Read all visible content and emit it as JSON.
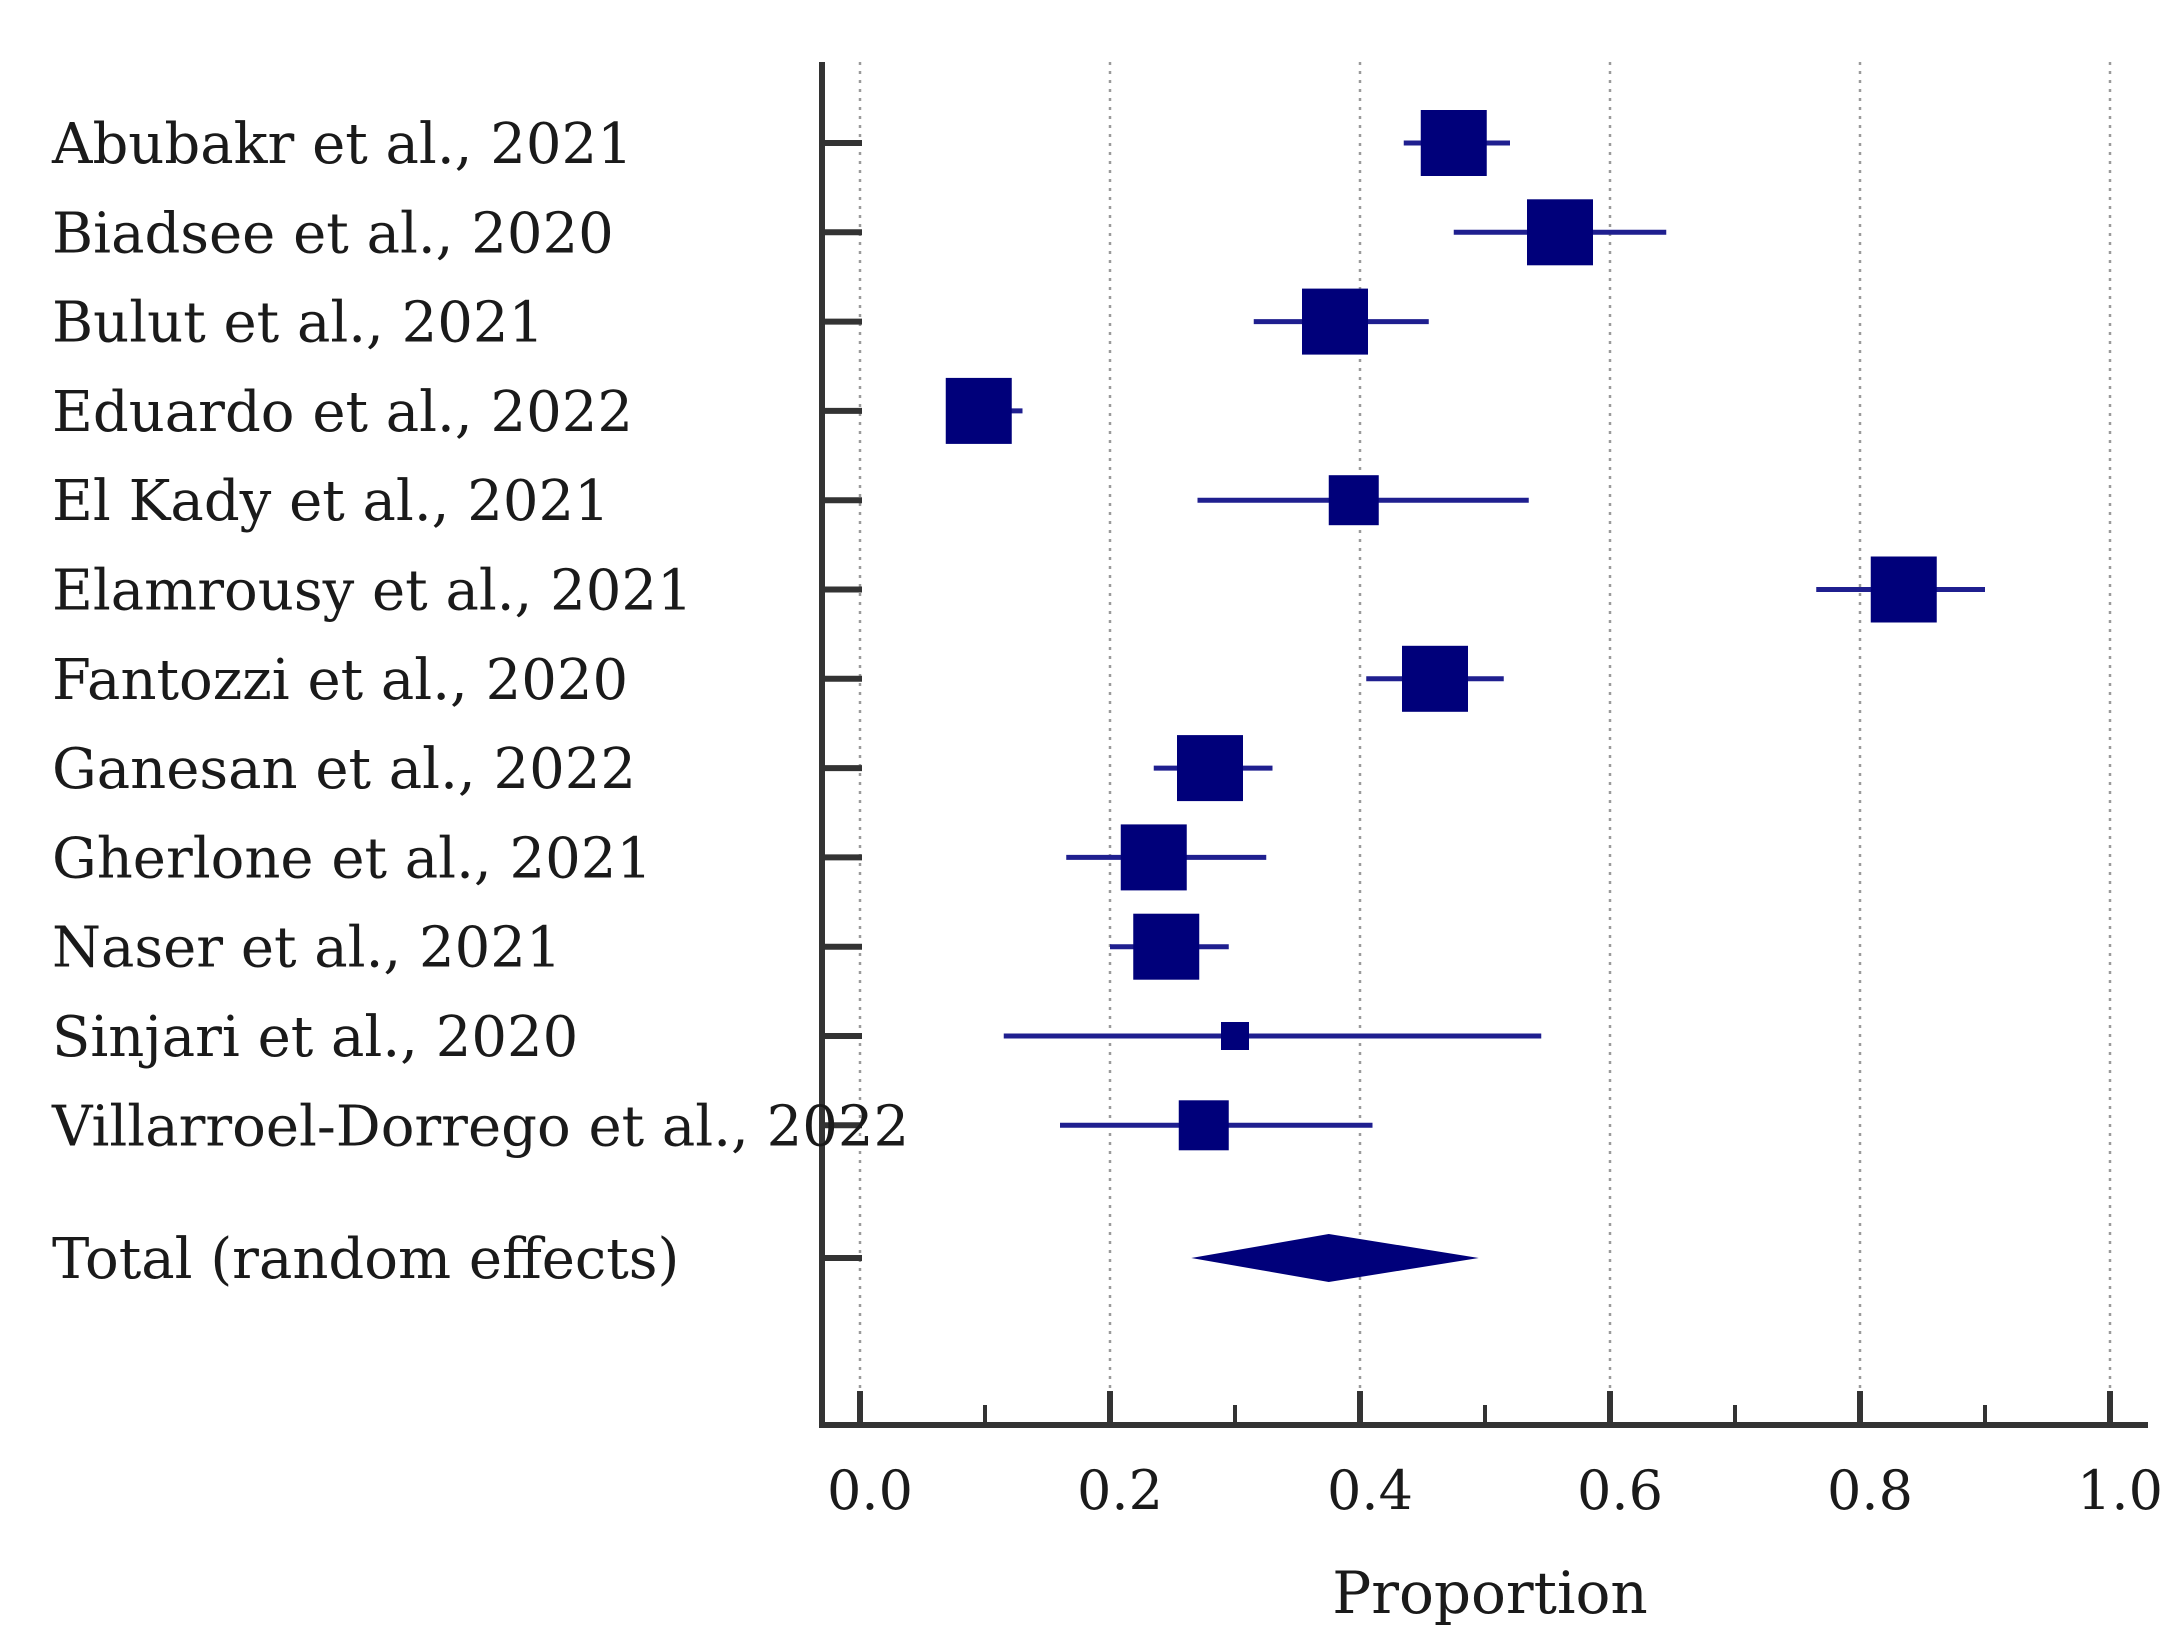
{
  "chart_data": {
    "type": "forest",
    "xlabel": "Proportion",
    "xlim": [
      0.0,
      1.0
    ],
    "xticks": [
      "0.0",
      "0.2",
      "0.4",
      "0.6",
      "0.8",
      "1.0"
    ],
    "grid": "vertical dotted at 0.2 intervals",
    "colors": {
      "marker": "#00007a",
      "ci": "#1f1f8f",
      "axis": "#333333",
      "grid": "#9a9a9a"
    },
    "studies": [
      {
        "label": "Abubakr et al., 2021",
        "estimate": 0.475,
        "ci_low": 0.435,
        "ci_high": 0.52,
        "weight": "large"
      },
      {
        "label": "Biadsee et al., 2020",
        "estimate": 0.56,
        "ci_low": 0.475,
        "ci_high": 0.645,
        "weight": "large"
      },
      {
        "label": "Bulut et al., 2021",
        "estimate": 0.38,
        "ci_low": 0.315,
        "ci_high": 0.455,
        "weight": "large"
      },
      {
        "label": "Eduardo et al., 2022",
        "estimate": 0.095,
        "ci_low": 0.075,
        "ci_high": 0.13,
        "weight": "large"
      },
      {
        "label": "El Kady et al., 2021",
        "estimate": 0.395,
        "ci_low": 0.27,
        "ci_high": 0.535,
        "weight": "medium"
      },
      {
        "label": "Elamrousy et al., 2021",
        "estimate": 0.835,
        "ci_low": 0.765,
        "ci_high": 0.9,
        "weight": "large"
      },
      {
        "label": "Fantozzi et al., 2020",
        "estimate": 0.46,
        "ci_low": 0.405,
        "ci_high": 0.515,
        "weight": "large"
      },
      {
        "label": "Ganesan et al., 2022",
        "estimate": 0.28,
        "ci_low": 0.235,
        "ci_high": 0.33,
        "weight": "large"
      },
      {
        "label": "Gherlone et al., 2021",
        "estimate": 0.235,
        "ci_low": 0.165,
        "ci_high": 0.325,
        "weight": "large"
      },
      {
        "label": "Naser et al., 2021",
        "estimate": 0.245,
        "ci_low": 0.2,
        "ci_high": 0.295,
        "weight": "large"
      },
      {
        "label": "Sinjari et al., 2020",
        "estimate": 0.3,
        "ci_low": 0.115,
        "ci_high": 0.545,
        "weight": "small"
      },
      {
        "label": "Villarroel-Dorrego et al., 2022",
        "estimate": 0.275,
        "ci_low": 0.16,
        "ci_high": 0.41,
        "weight": "medium"
      }
    ],
    "pooled": {
      "label": "Total (random effects)",
      "estimate": 0.375,
      "ci_low": 0.265,
      "ci_high": 0.495
    }
  }
}
